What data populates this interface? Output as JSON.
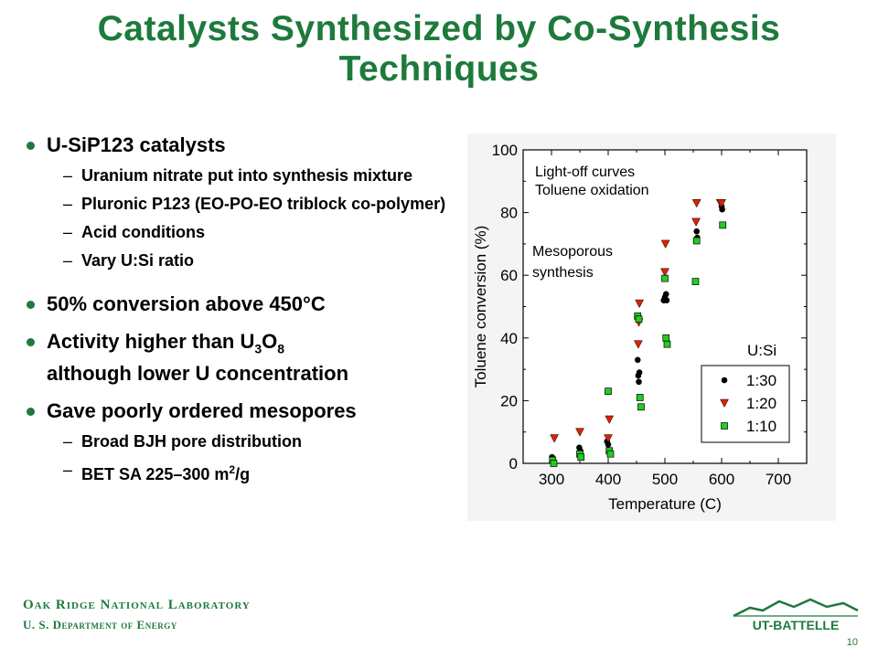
{
  "slide": {
    "title_line1": "Catalysts Synthesized by Co-Synthesis",
    "title_line2": "Techniques",
    "page_number": "10"
  },
  "bullets": {
    "b1": "U-SiP123 catalysts",
    "b1_subs": [
      "Uranium nitrate put into synthesis mixture",
      "Pluronic P123 (EO-PO-EO triblock co-polymer)",
      "Acid conditions",
      "Vary U:Si ratio"
    ],
    "b2_prefix": "50% conversion above 450",
    "b2_deg": "°",
    "b2_unit": "C",
    "b3_prefix": "Activity higher than U",
    "b3_sub1": "3",
    "b3_mid": "O",
    "b3_sub2": "8",
    "b3_rest": "although lower U concentration",
    "b4": "Gave poorly ordered mesopores",
    "b4_sub1": "Broad BJH pore distribution",
    "b4_sub2_prefix": "BET SA 225–300  m",
    "b4_sub2_sup": "2",
    "b4_sub2_suffix": "/g"
  },
  "footer": {
    "org": "Oak Ridge National Laboratory",
    "dept": "U. S. Department of Energy",
    "logo_text": "UT-BATTELLE"
  },
  "chart_data": {
    "type": "scatter",
    "xlabel": "Temperature (C)",
    "ylabel": "Toluene conversion (%)",
    "xlim": [
      250,
      750
    ],
    "ylim": [
      0,
      100
    ],
    "xticks": [
      300,
      400,
      500,
      600,
      700
    ],
    "yticks": [
      0,
      20,
      40,
      60,
      80,
      100
    ],
    "annotations": [
      "Light-off curves",
      "Toluene oxidation",
      "Mesoporous",
      "synthesis"
    ],
    "legend_title": "U:Si",
    "legend_position": "lower-right",
    "series": [
      {
        "name": "1:30",
        "marker": "circle",
        "color": "#000000",
        "x": [
          301,
          303,
          349,
          351,
          398,
          400,
          452,
          453,
          454,
          455,
          498,
          500,
          502,
          503,
          556,
          557,
          600,
          601
        ],
        "y": [
          2,
          1,
          5,
          4,
          7,
          6,
          33,
          28,
          26,
          29,
          52,
          53,
          54,
          52,
          74,
          72,
          82,
          81
        ]
      },
      {
        "name": "1:20",
        "marker": "triangle-down",
        "color": "#dd2200",
        "x": [
          305,
          350,
          400,
          402,
          453,
          454,
          455,
          500,
          501,
          555,
          556,
          598,
          600
        ],
        "y": [
          8,
          10,
          8,
          14,
          38,
          45,
          51,
          61,
          70,
          77,
          83,
          83,
          83
        ]
      },
      {
        "name": "1:10",
        "marker": "square",
        "color": "#22cc22",
        "x": [
          302,
          304,
          350,
          352,
          400,
          402,
          404,
          452,
          454,
          456,
          458,
          500,
          502,
          504,
          554,
          556,
          602
        ],
        "y": [
          1,
          0,
          3,
          2,
          23,
          4,
          3,
          47,
          46,
          21,
          18,
          59,
          40,
          38,
          58,
          71,
          76
        ]
      }
    ]
  }
}
